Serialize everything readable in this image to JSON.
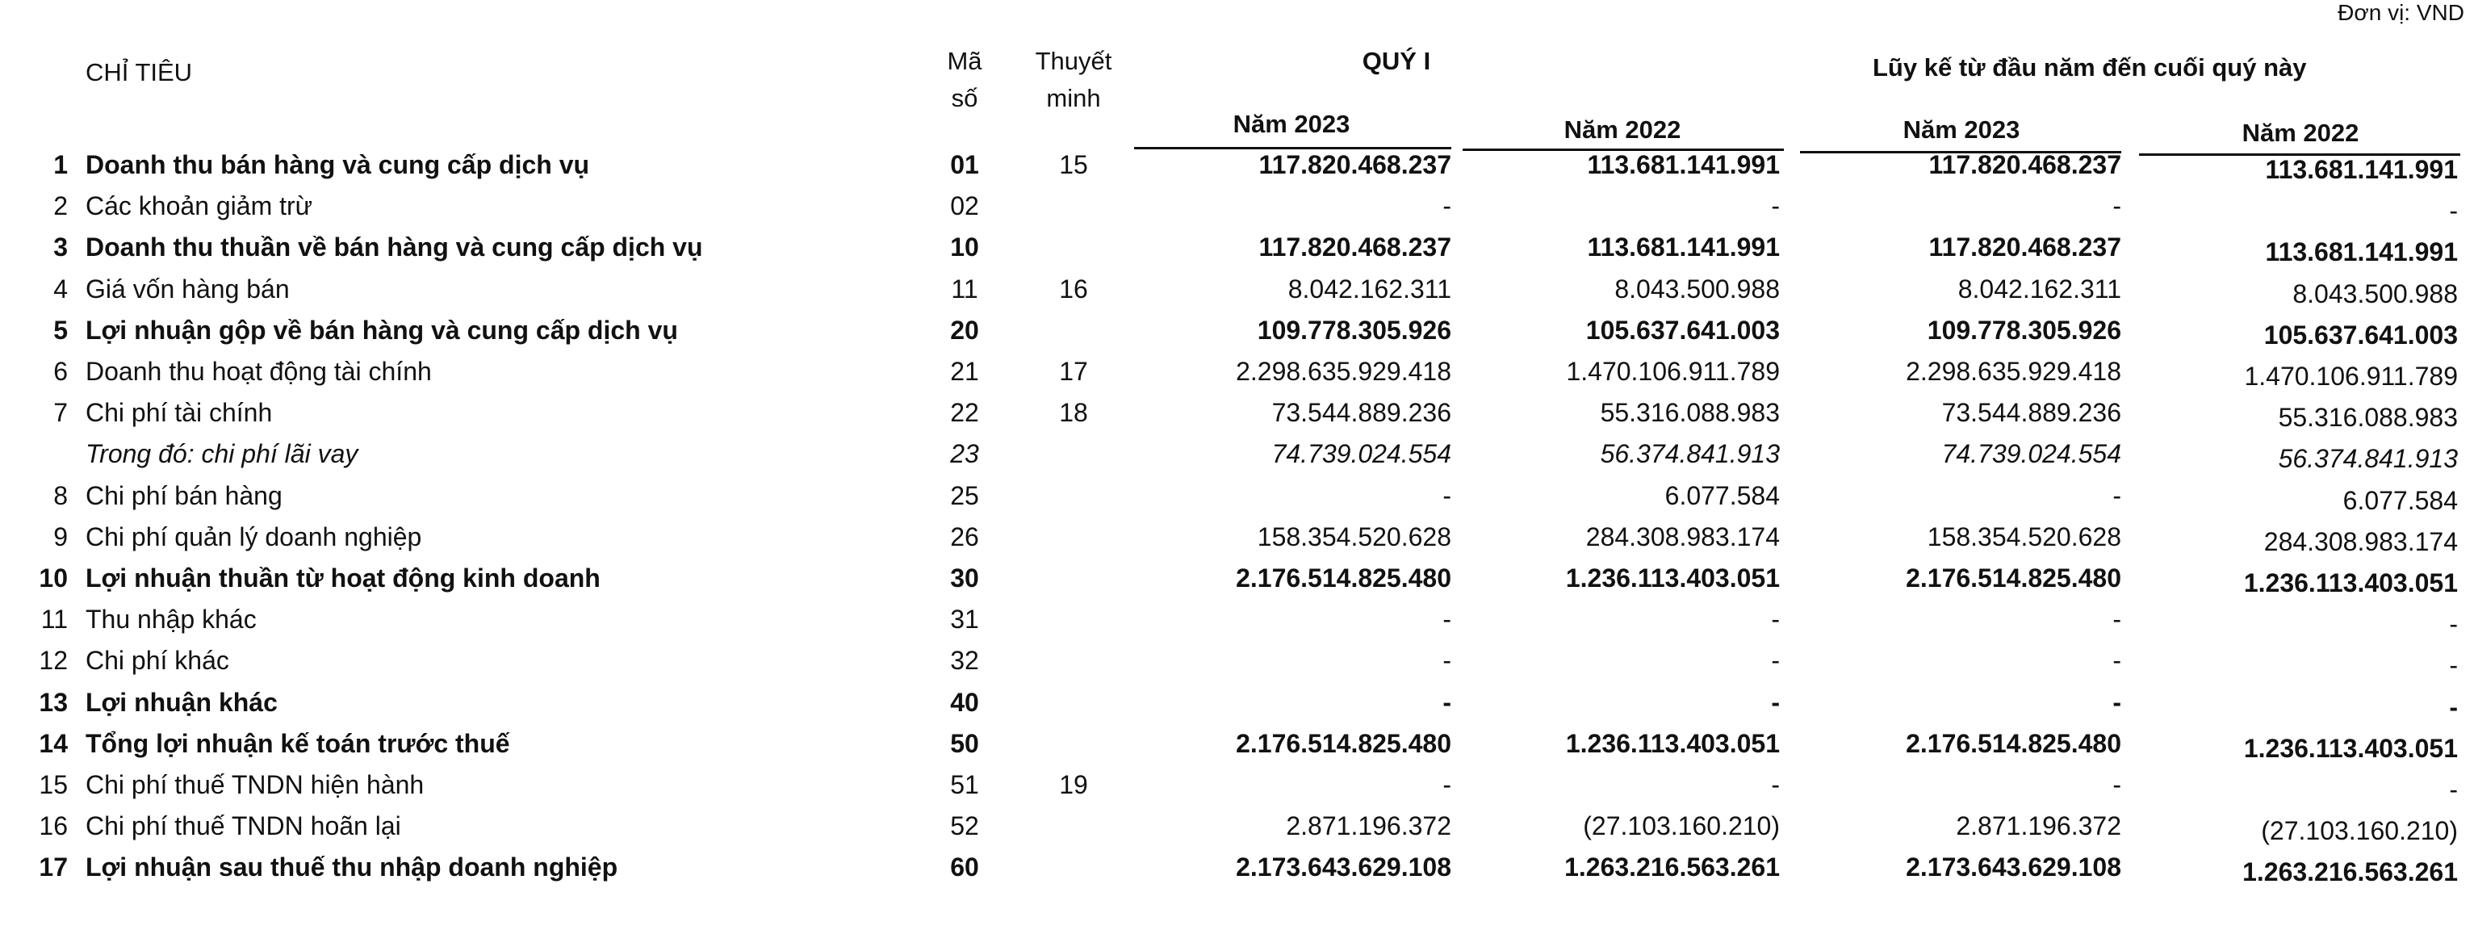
{
  "unit": "Đơn vị: VND",
  "header": {
    "chi_tieu": "CHỈ TIÊU",
    "ma_so_1": "Mã",
    "ma_so_2": "số",
    "thuyet_minh_1": "Thuyết",
    "thuyet_minh_2": "minh",
    "quy": "QUÝ I",
    "luy_ke": "Lũy kế từ đầu năm đến cuối quý này",
    "cols": [
      "Năm 2023",
      "Năm 2022",
      "Năm 2023",
      "Năm 2022"
    ]
  },
  "rows": [
    {
      "idx": "1",
      "label": "Doanh thu bán hàng và cung cấp dịch vụ",
      "code": "01",
      "note": "15",
      "q2023": "117.820.468.237",
      "q2022": "113.681.141.991",
      "l2023": "117.820.468.237",
      "l2022": "113.681.141.991",
      "bold": true
    },
    {
      "idx": "2",
      "label": "Các khoản giảm trừ",
      "code": "02",
      "note": "",
      "q2023": "-",
      "q2022": "-",
      "l2023": "-",
      "l2022": "-"
    },
    {
      "idx": "3",
      "label": "Doanh thu thuần về bán hàng và cung cấp dịch vụ",
      "code": "10",
      "note": "",
      "q2023": "117.820.468.237",
      "q2022": "113.681.141.991",
      "l2023": "117.820.468.237",
      "l2022": "113.681.141.991",
      "bold": true
    },
    {
      "idx": "4",
      "label": "Giá vốn hàng bán",
      "code": "11",
      "note": "16",
      "q2023": "8.042.162.311",
      "q2022": "8.043.500.988",
      "l2023": "8.042.162.311",
      "l2022": "8.043.500.988"
    },
    {
      "idx": "5",
      "label": "Lợi nhuận gộp về bán hàng và cung cấp dịch vụ",
      "code": "20",
      "note": "",
      "q2023": "109.778.305.926",
      "q2022": "105.637.641.003",
      "l2023": "109.778.305.926",
      "l2022": "105.637.641.003",
      "bold": true
    },
    {
      "idx": "6",
      "label": "Doanh thu hoạt động tài chính",
      "code": "21",
      "note": "17",
      "q2023": "2.298.635.929.418",
      "q2022": "1.470.106.911.789",
      "l2023": "2.298.635.929.418",
      "l2022": "1.470.106.911.789"
    },
    {
      "idx": "7",
      "label": "Chi phí tài chính",
      "code": "22",
      "note": "18",
      "q2023": "73.544.889.236",
      "q2022": "55.316.088.983",
      "l2023": "73.544.889.236",
      "l2022": "55.316.088.983"
    },
    {
      "idx": "",
      "label": "Trong đó: chi phí lãi vay",
      "code": "23",
      "note": "",
      "q2023": "74.739.024.554",
      "q2022": "56.374.841.913",
      "l2023": "74.739.024.554",
      "l2022": "56.374.841.913",
      "italic": true
    },
    {
      "idx": "8",
      "label": "Chi phí bán hàng",
      "code": "25",
      "note": "",
      "q2023": "-",
      "q2022": "6.077.584",
      "l2023": "-",
      "l2022": "6.077.584"
    },
    {
      "idx": "9",
      "label": "Chi phí quản lý doanh nghiệp",
      "code": "26",
      "note": "",
      "q2023": "158.354.520.628",
      "q2022": "284.308.983.174",
      "l2023": "158.354.520.628",
      "l2022": "284.308.983.174"
    },
    {
      "idx": "10",
      "label": "Lợi nhuận thuần từ hoạt động kinh doanh",
      "code": "30",
      "note": "",
      "q2023": "2.176.514.825.480",
      "q2022": "1.236.113.403.051",
      "l2023": "2.176.514.825.480",
      "l2022": "1.236.113.403.051",
      "bold": true
    },
    {
      "idx": "11",
      "label": "Thu nhập khác",
      "code": "31",
      "note": "",
      "q2023": "-",
      "q2022": "-",
      "l2023": "-",
      "l2022": "-"
    },
    {
      "idx": "12",
      "label": "Chi phí khác",
      "code": "32",
      "note": "",
      "q2023": "-",
      "q2022": "-",
      "l2023": "-",
      "l2022": "-"
    },
    {
      "idx": "13",
      "label": "Lợi nhuận khác",
      "code": "40",
      "note": "",
      "q2023": "-",
      "q2022": "-",
      "l2023": "-",
      "l2022": "-",
      "bold": true
    },
    {
      "idx": "14",
      "label": "Tổng lợi nhuận kế toán trước thuế",
      "code": "50",
      "note": "",
      "q2023": "2.176.514.825.480",
      "q2022": "1.236.113.403.051",
      "l2023": "2.176.514.825.480",
      "l2022": "1.236.113.403.051",
      "bold": true
    },
    {
      "idx": "15",
      "label": "Chi phí thuế TNDN hiện hành",
      "code": "51",
      "note": "19",
      "q2023": "-",
      "q2022": "-",
      "l2023": "-",
      "l2022": "-"
    },
    {
      "idx": "16",
      "label": "Chi phí thuế TNDN hoãn lại",
      "code": "52",
      "note": "",
      "q2023": "2.871.196.372",
      "q2022": "(27.103.160.210)",
      "l2023": "2.871.196.372",
      "l2022": "(27.103.160.210)"
    },
    {
      "idx": "17",
      "label": "Lợi nhuận sau thuế thu nhập doanh nghiệp",
      "code": "60",
      "note": "",
      "q2023": "2.173.643.629.108",
      "q2022": "1.263.216.563.261",
      "l2023": "2.173.643.629.108",
      "l2022": "1.263.216.563.261",
      "bold": true
    }
  ]
}
